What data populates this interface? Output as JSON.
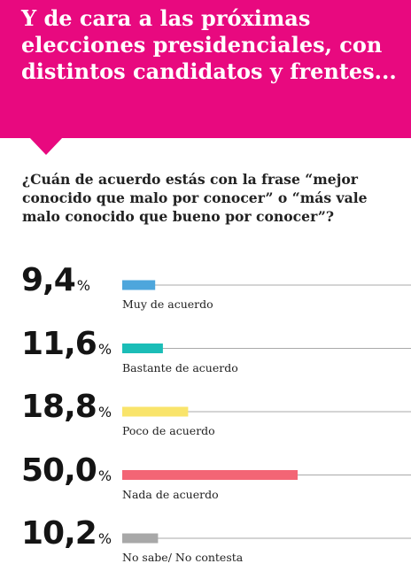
{
  "header": {
    "title": "Y de cara a las próximas elecciones presidenciales, con distintos candidatos y frentes..."
  },
  "question": "¿Cuán de acuerdo estás con la frase “mejor conocido que malo por conocer” o “más vale malo conocido que bueno por conocer”?",
  "colors": {
    "header_bg": "#e8097f",
    "axis_line": "#aaaaaa"
  },
  "chart_data": {
    "type": "bar",
    "orientation": "horizontal",
    "xlim": [
      0,
      100
    ],
    "unit": "%",
    "categories": [
      "Muy de acuerdo",
      "Bastante de acuerdo",
      "Poco de acuerdo",
      "Nada de acuerdo",
      "No sabe/ No contesta"
    ],
    "values": [
      9.4,
      11.6,
      18.8,
      50.0,
      10.2
    ],
    "value_labels": [
      "9,4",
      "11,6",
      "18,8",
      "50,0",
      "10,2"
    ],
    "percent_sign": "%",
    "colors": [
      "#4ea6dc",
      "#1bbdb7",
      "#f9e46b",
      "#f36575",
      "#a8a8a8"
    ],
    "grid": false,
    "legend": "none"
  }
}
